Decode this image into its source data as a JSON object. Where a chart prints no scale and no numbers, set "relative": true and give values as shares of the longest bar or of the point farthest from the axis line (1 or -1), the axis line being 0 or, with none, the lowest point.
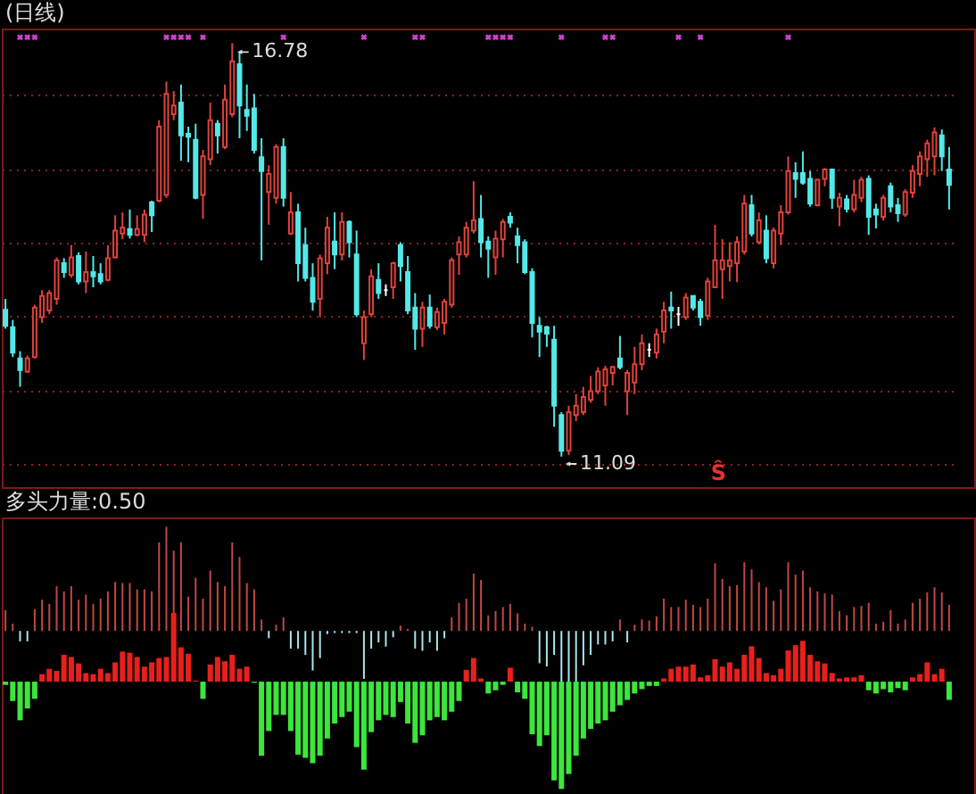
{
  "chart_data": [
    {
      "type": "candlestick",
      "title": "(日线)",
      "categories": [
        null,
        null,
        null,
        null,
        null,
        null,
        null,
        null,
        null,
        null,
        null,
        null,
        null,
        null,
        null,
        null,
        null,
        null,
        null,
        null,
        null,
        null,
        null,
        null,
        null,
        null,
        null,
        null,
        null,
        null,
        null,
        null,
        null,
        null,
        null,
        null,
        null,
        null,
        null,
        null,
        null,
        null,
        null,
        null,
        null,
        null,
        null,
        null,
        null,
        null,
        null,
        null,
        null,
        null,
        null,
        null,
        null,
        null,
        null,
        null,
        null,
        null,
        null,
        null,
        null,
        null,
        null,
        null,
        null,
        null,
        null,
        null,
        null,
        null,
        null,
        null,
        null,
        null,
        null,
        null,
        null,
        null,
        null,
        null,
        null,
        null,
        null,
        null,
        null,
        null,
        null,
        null,
        null,
        null,
        null,
        null,
        null,
        null,
        null,
        null,
        null,
        null,
        null,
        null,
        null,
        null,
        null,
        null,
        null,
        null,
        null,
        null,
        null,
        null,
        null,
        null,
        null,
        null,
        null,
        null,
        null,
        null,
        null,
        null,
        null,
        null,
        null,
        null,
        null,
        null
      ],
      "ohlc": [
        [
          13.11,
          13.26,
          12.85,
          12.89
        ],
        [
          12.87,
          12.97,
          12.46,
          12.52
        ],
        [
          12.44,
          12.54,
          12.05,
          12.28
        ],
        [
          12.26,
          12.48,
          12.24,
          12.44
        ],
        [
          12.46,
          13.18,
          12.44,
          13.14
        ],
        [
          13.01,
          13.38,
          12.93,
          13.3
        ],
        [
          13.1,
          13.38,
          13.05,
          13.34
        ],
        [
          13.26,
          13.83,
          13.18,
          13.79
        ],
        [
          13.75,
          13.82,
          13.55,
          13.63
        ],
        [
          13.59,
          14.0,
          13.55,
          13.83
        ],
        [
          13.85,
          13.9,
          13.46,
          13.5
        ],
        [
          13.5,
          13.91,
          13.34,
          13.63
        ],
        [
          13.63,
          13.85,
          13.42,
          13.57
        ],
        [
          13.6,
          13.75,
          13.46,
          13.5
        ],
        [
          13.52,
          14.0,
          13.5,
          13.82
        ],
        [
          13.83,
          14.41,
          13.82,
          14.2
        ],
        [
          14.16,
          14.45,
          14.08,
          14.24
        ],
        [
          14.22,
          14.49,
          14.09,
          14.14
        ],
        [
          14.14,
          14.41,
          14.12,
          14.22
        ],
        [
          14.14,
          14.49,
          14.04,
          14.42
        ],
        [
          14.59,
          14.61,
          14.18,
          14.41
        ],
        [
          14.61,
          15.72,
          14.59,
          15.63
        ],
        [
          14.69,
          16.25,
          14.65,
          16.08
        ],
        [
          15.8,
          16.12,
          15.72,
          15.92
        ],
        [
          15.96,
          16.21,
          15.16,
          15.51
        ],
        [
          15.53,
          15.63,
          15.14,
          15.49
        ],
        [
          15.45,
          15.67,
          14.63,
          14.65
        ],
        [
          14.69,
          15.31,
          14.36,
          15.22
        ],
        [
          15.18,
          15.96,
          15.1,
          15.72
        ],
        [
          15.67,
          15.72,
          15.26,
          15.51
        ],
        [
          15.35,
          16.21,
          15.32,
          16.0
        ],
        [
          15.8,
          16.78,
          15.76,
          16.53
        ],
        [
          16.49,
          16.66,
          15.47,
          15.92
        ],
        [
          15.86,
          16.21,
          15.57,
          15.78
        ],
        [
          15.88,
          16.08,
          15.26,
          15.31
        ],
        [
          15.21,
          15.47,
          13.79,
          15.02
        ],
        [
          14.73,
          15.1,
          14.28,
          14.98
        ],
        [
          14.65,
          15.39,
          14.57,
          15.35
        ],
        [
          15.35,
          15.47,
          14.53,
          14.65
        ],
        [
          14.16,
          14.73,
          14.14,
          14.45
        ],
        [
          14.45,
          14.57,
          13.5,
          13.75
        ],
        [
          14.0,
          14.24,
          13.5,
          13.55
        ],
        [
          13.55,
          13.75,
          13.1,
          13.22
        ],
        [
          13.26,
          13.87,
          13.01,
          13.82
        ],
        [
          13.75,
          14.39,
          13.6,
          14.24
        ],
        [
          14.05,
          14.45,
          13.67,
          13.87
        ],
        [
          13.87,
          14.45,
          13.79,
          14.32
        ],
        [
          14.32,
          14.34,
          13.83,
          14.04
        ],
        [
          13.87,
          14.2,
          13.01,
          13.05
        ],
        [
          12.65,
          13.1,
          12.42,
          13.01
        ],
        [
          13.05,
          13.67,
          13.01,
          13.57
        ],
        [
          13.52,
          13.75,
          13.26,
          13.34
        ],
        [
          13.38,
          13.46,
          13.3,
          13.38
        ],
        [
          13.42,
          13.77,
          13.26,
          13.75
        ],
        [
          14.0,
          14.04,
          13.5,
          13.71
        ],
        [
          13.63,
          13.85,
          13.05,
          13.1
        ],
        [
          13.14,
          13.34,
          12.56,
          12.85
        ],
        [
          12.85,
          13.22,
          12.6,
          13.14
        ],
        [
          13.14,
          13.32,
          12.85,
          12.89
        ],
        [
          12.87,
          13.14,
          12.83,
          13.08
        ],
        [
          12.93,
          13.26,
          12.77,
          13.22
        ],
        [
          13.18,
          13.83,
          13.14,
          13.79
        ],
        [
          13.87,
          14.12,
          13.59,
          14.04
        ],
        [
          13.87,
          14.32,
          13.83,
          14.24
        ],
        [
          14.2,
          14.88,
          14.16,
          14.34
        ],
        [
          14.36,
          14.69,
          13.83,
          14.04
        ],
        [
          14.05,
          14.12,
          13.55,
          13.95
        ],
        [
          13.83,
          14.2,
          13.59,
          14.09
        ],
        [
          14.08,
          14.36,
          13.83,
          14.32
        ],
        [
          14.39,
          14.45,
          14.24,
          14.31
        ],
        [
          14.12,
          14.24,
          13.75,
          14.0
        ],
        [
          14.04,
          14.08,
          13.6,
          13.63
        ],
        [
          13.63,
          13.68,
          12.73,
          12.93
        ],
        [
          12.89,
          13.01,
          12.46,
          12.81
        ],
        [
          12.87,
          12.89,
          12.6,
          12.78
        ],
        [
          12.7,
          12.89,
          11.5,
          11.79
        ],
        [
          11.66,
          11.7,
          11.09,
          11.17
        ],
        [
          11.17,
          11.79,
          11.11,
          11.7
        ],
        [
          11.66,
          11.95,
          11.58,
          11.79
        ],
        [
          11.7,
          12.05,
          11.66,
          11.91
        ],
        [
          11.87,
          12.2,
          11.83,
          11.99
        ],
        [
          11.99,
          12.32,
          11.95,
          12.26
        ],
        [
          12.07,
          12.34,
          11.79,
          12.29
        ],
        [
          12.24,
          12.34,
          12.07,
          12.32
        ],
        [
          12.44,
          12.75,
          12.29,
          12.32
        ],
        [
          11.99,
          12.28,
          11.66,
          12.24
        ],
        [
          12.11,
          12.6,
          11.95,
          12.36
        ],
        [
          12.36,
          12.77,
          12.28,
          12.65
        ],
        [
          12.56,
          12.65,
          12.46,
          12.56
        ],
        [
          12.52,
          12.85,
          12.44,
          12.77
        ],
        [
          12.81,
          13.22,
          12.65,
          13.1
        ],
        [
          13.14,
          13.36,
          12.85,
          13.1
        ],
        [
          13.05,
          13.15,
          12.89,
          13.05
        ],
        [
          13.01,
          13.34,
          12.97,
          13.28
        ],
        [
          13.3,
          13.3,
          13.1,
          13.14
        ],
        [
          13.22,
          13.26,
          12.89,
          13.01
        ],
        [
          13.03,
          13.55,
          12.97,
          13.5
        ],
        [
          13.42,
          14.28,
          13.41,
          13.79
        ],
        [
          13.67,
          14.08,
          13.26,
          13.79
        ],
        [
          13.71,
          14.04,
          13.5,
          13.79
        ],
        [
          13.75,
          14.12,
          13.49,
          14.04
        ],
        [
          13.91,
          14.69,
          13.87,
          14.57
        ],
        [
          14.55,
          14.69,
          14.12,
          14.16
        ],
        [
          14.04,
          14.45,
          14.01,
          14.34
        ],
        [
          14.2,
          14.41,
          13.75,
          13.82
        ],
        [
          13.75,
          14.24,
          13.68,
          14.2
        ],
        [
          14.16,
          14.55,
          14.0,
          14.45
        ],
        [
          14.45,
          15.22,
          14.42,
          15.02
        ],
        [
          14.99,
          15.14,
          14.65,
          14.91
        ],
        [
          14.99,
          15.29,
          14.83,
          14.86
        ],
        [
          14.91,
          15.02,
          14.53,
          14.57
        ],
        [
          14.55,
          14.91,
          14.53,
          14.9
        ],
        [
          14.91,
          15.06,
          14.81,
          15.04
        ],
        [
          15.04,
          15.04,
          14.5,
          14.65
        ],
        [
          14.53,
          14.72,
          14.26,
          14.65
        ],
        [
          14.63,
          14.69,
          14.45,
          14.5
        ],
        [
          14.49,
          14.9,
          14.45,
          14.69
        ],
        [
          14.65,
          14.94,
          14.59,
          14.9
        ],
        [
          14.91,
          14.96,
          14.14,
          14.39
        ],
        [
          14.49,
          14.57,
          14.23,
          14.42
        ],
        [
          14.39,
          14.69,
          14.34,
          14.65
        ],
        [
          14.81,
          14.86,
          14.45,
          14.53
        ],
        [
          14.55,
          14.65,
          14.32,
          14.44
        ],
        [
          14.42,
          14.77,
          14.39,
          14.73
        ],
        [
          14.72,
          15.1,
          14.65,
          15.02
        ],
        [
          14.98,
          15.29,
          14.81,
          15.22
        ],
        [
          15.18,
          15.45,
          14.94,
          15.4
        ],
        [
          15.22,
          15.62,
          14.96,
          15.55
        ],
        [
          15.51,
          15.59,
          15.02,
          15.22
        ],
        [
          15.04,
          15.35,
          14.49,
          14.83
        ]
      ],
      "colors": [
        "#54e8e8",
        "#54e8e8",
        "#54e8e8",
        "#e0423c",
        "#e0423c",
        "#e0423c",
        "#e0423c",
        "#e0423c",
        "#54e8e8",
        "#e0423c",
        "#54e8e8",
        "#e0423c",
        "#54e8e8",
        "#54e8e8",
        "#e0423c",
        "#e0423c",
        "#e0423c",
        "#54e8e8",
        "#e0423c",
        "#e0423c",
        "#54e8e8",
        "#e0423c",
        "#e0423c",
        "#e0423c",
        "#54e8e8",
        "#54e8e8",
        "#54e8e8",
        "#e0423c",
        "#e0423c",
        "#54e8e8",
        "#e0423c",
        "#e0423c",
        "#54e8e8",
        "#54e8e8",
        "#54e8e8",
        "#54e8e8",
        "#e0423c",
        "#e0423c",
        "#54e8e8",
        "#e0423c",
        "#54e8e8",
        "#54e8e8",
        "#54e8e8",
        "#e0423c",
        "#e0423c",
        "#54e8e8",
        "#e0423c",
        "#54e8e8",
        "#54e8e8",
        "#e0423c",
        "#e0423c",
        "#54e8e8",
        "#ffffff",
        "#e0423c",
        "#54e8e8",
        "#54e8e8",
        "#54e8e8",
        "#e0423c",
        "#54e8e8",
        "#e0423c",
        "#e0423c",
        "#e0423c",
        "#e0423c",
        "#e0423c",
        "#e0423c",
        "#54e8e8",
        "#54e8e8",
        "#e0423c",
        "#e0423c",
        "#54e8e8",
        "#54e8e8",
        "#54e8e8",
        "#54e8e8",
        "#54e8e8",
        "#54e8e8",
        "#54e8e8",
        "#54e8e8",
        "#e0423c",
        "#e0423c",
        "#e0423c",
        "#e0423c",
        "#e0423c",
        "#e0423c",
        "#e0423c",
        "#54e8e8",
        "#e0423c",
        "#e0423c",
        "#e0423c",
        "#ffffff",
        "#e0423c",
        "#e0423c",
        "#54e8e8",
        "#ffffff",
        "#e0423c",
        "#54e8e8",
        "#54e8e8",
        "#e0423c",
        "#e0423c",
        "#e0423c",
        "#e0423c",
        "#e0423c",
        "#e0423c",
        "#54e8e8",
        "#e0423c",
        "#54e8e8",
        "#e0423c",
        "#e0423c",
        "#e0423c",
        "#54e8e8",
        "#54e8e8",
        "#54e8e8",
        "#e0423c",
        "#e0423c",
        "#54e8e8",
        "#e0423c",
        "#54e8e8",
        "#e0423c",
        "#e0423c",
        "#54e8e8",
        "#54e8e8",
        "#e0423c",
        "#54e8e8",
        "#54e8e8",
        "#e0423c",
        "#e0423c",
        "#e0423c",
        "#e0423c",
        "#e0423c",
        "#54e8e8",
        "#54e8e8"
      ],
      "series": [
        {
          "type": "scatter",
          "marker": "cross",
          "color": "#d040d0",
          "values": [
            null,
            null,
            16.86,
            16.86,
            16.86,
            null,
            null,
            null,
            null,
            null,
            null,
            null,
            null,
            null,
            null,
            null,
            null,
            null,
            null,
            null,
            null,
            null,
            16.86,
            16.86,
            16.86,
            16.86,
            null,
            16.86,
            null,
            null,
            null,
            null,
            null,
            null,
            null,
            null,
            null,
            null,
            16.86,
            null,
            null,
            null,
            null,
            null,
            null,
            null,
            null,
            null,
            null,
            16.86,
            null,
            null,
            null,
            null,
            null,
            null,
            16.86,
            16.86,
            null,
            null,
            null,
            null,
            null,
            null,
            null,
            null,
            16.86,
            16.86,
            16.86,
            16.86,
            null,
            null,
            null,
            null,
            null,
            null,
            16.86,
            null,
            null,
            null,
            null,
            null,
            16.86,
            16.86,
            null,
            null,
            null,
            null,
            null,
            null,
            null,
            null,
            16.86,
            null,
            null,
            16.86,
            null,
            null,
            null,
            null,
            null,
            null,
            null,
            null,
            null,
            null,
            null,
            16.86,
            null,
            null,
            null,
            null,
            null,
            null,
            null,
            null,
            null,
            null,
            null,
            null,
            null,
            null,
            null,
            null,
            null,
            null,
            null,
            null,
            null,
            null
          ]
        }
      ],
      "ylim": [
        10.67,
        16.98
      ],
      "yticks": [
        {
          "value": 16.08,
          "label": null
        },
        {
          "value": 15.04,
          "label": null
        },
        {
          "value": 14.04,
          "label": null
        },
        {
          "value": 13.03,
          "label": null
        },
        {
          "value": 11.99,
          "label": null
        },
        {
          "value": 10.98,
          "label": null
        }
      ],
      "grid": "y",
      "annotations": [
        {
          "text": "16.78",
          "y": 16.78
        },
        "11.09",
        "Ŝ"
      ]
    },
    {
      "type": "bar",
      "relative": true,
      "title": "多头力量:0.50",
      "categories": [
        null,
        null,
        null,
        null,
        null,
        null,
        null,
        null,
        null,
        null,
        null,
        null,
        null,
        null,
        null,
        null,
        null,
        null,
        null,
        null,
        null,
        null,
        null,
        null,
        null,
        null,
        null,
        null,
        null,
        null,
        null,
        null,
        null,
        null,
        null,
        null,
        null,
        null,
        null,
        null,
        null,
        null,
        null,
        null,
        null,
        null,
        null,
        null,
        null,
        null,
        null,
        null,
        null,
        null,
        null,
        null,
        null,
        null,
        null,
        null,
        null,
        null,
        null,
        null,
        null,
        null,
        null,
        null,
        null,
        null,
        null,
        null,
        null,
        null,
        null,
        null,
        null,
        null,
        null,
        null,
        null,
        null,
        null,
        null,
        null,
        null,
        null,
        null,
        null,
        null,
        null,
        null,
        null,
        null,
        null,
        null,
        null,
        null,
        null,
        null,
        null,
        null,
        null,
        null,
        null,
        null,
        null,
        null,
        null,
        null,
        null,
        null,
        null,
        null,
        null,
        null,
        null,
        null,
        null,
        null,
        null,
        null,
        null,
        null,
        null,
        null,
        null,
        null,
        null,
        null
      ],
      "series": [
        {
          "color": "#c04844",
          "values": [
            0.2,
            0.07,
            null,
            null,
            0.21,
            0.3,
            0.26,
            0.43,
            0.38,
            0.43,
            0.3,
            0.35,
            0.26,
            0.31,
            0.38,
            0.47,
            0.46,
            0.46,
            0.4,
            0.4,
            0.38,
            0.85,
            1.0,
            0.77,
            0.85,
            0.33,
            0.51,
            0.31,
            0.58,
            0.47,
            0.43,
            0.85,
            0.71,
            0.46,
            0.4,
            0.11,
            null,
            0.06,
            0.13,
            null,
            null,
            null,
            null,
            null,
            null,
            null,
            null,
            null,
            null,
            null,
            null,
            null,
            null,
            null,
            0.05,
            0.02,
            null,
            null,
            null,
            null,
            null,
            0.13,
            0.27,
            0.31,
            0.55,
            0.49,
            0.15,
            0.19,
            0.23,
            0.26,
            0.17,
            0.07,
            0.04,
            null,
            null,
            null,
            null,
            null,
            null,
            null,
            null,
            null,
            null,
            null,
            0.11,
            null,
            0.06,
            0.11,
            0.1,
            0.14,
            0.31,
            0.23,
            0.23,
            0.3,
            0.25,
            0.23,
            0.31,
            0.65,
            0.5,
            0.43,
            0.44,
            0.66,
            0.59,
            0.47,
            0.42,
            0.29,
            0.4,
            0.66,
            0.54,
            0.58,
            0.42,
            0.38,
            0.36,
            0.35,
            0.19,
            0.15,
            0.23,
            0.24,
            0.27,
            0.07,
            0.09,
            0.2,
            0.07,
            0.11,
            0.27,
            0.31,
            0.37,
            0.42,
            0.37,
            0.25
          ]
        },
        {
          "color": "#a8e6ee",
          "values": [
            null,
            null,
            -0.1,
            -0.1,
            null,
            null,
            null,
            null,
            null,
            null,
            null,
            null,
            null,
            null,
            null,
            null,
            null,
            null,
            null,
            null,
            null,
            null,
            null,
            null,
            null,
            null,
            null,
            null,
            null,
            null,
            null,
            null,
            null,
            null,
            null,
            null,
            -0.07,
            null,
            null,
            -0.17,
            -0.17,
            -0.23,
            -0.38,
            -0.26,
            -0.03,
            -0.02,
            -0.02,
            -0.02,
            -0.02,
            -0.46,
            -0.17,
            -0.11,
            -0.15,
            -0.06,
            null,
            null,
            -0.17,
            -0.19,
            -0.11,
            -0.19,
            -0.07,
            null,
            null,
            null,
            null,
            null,
            null,
            null,
            null,
            null,
            null,
            null,
            null,
            -0.31,
            -0.34,
            -0.23,
            -0.49,
            -0.49,
            -0.49,
            -0.33,
            -0.23,
            -0.13,
            -0.13,
            -0.1,
            null,
            -0.11,
            null,
            null,
            null,
            null,
            null,
            null,
            null,
            null,
            null,
            null,
            null,
            null,
            null,
            null,
            null,
            null,
            null,
            null,
            null,
            null,
            null,
            null,
            null,
            null,
            null,
            null,
            null,
            null,
            null,
            null,
            null,
            null,
            null,
            null,
            null,
            null,
            null,
            null,
            null,
            null,
            null,
            null,
            null,
            null
          ]
        },
        {
          "color": "#e8201c",
          "axis": "y2",
          "values": [
            null,
            null,
            null,
            null,
            null,
            0.07,
            0.12,
            0.1,
            0.25,
            0.23,
            0.17,
            0.08,
            0.07,
            0.12,
            0.08,
            0.18,
            0.28,
            0.27,
            0.23,
            0.14,
            0.18,
            0.22,
            0.23,
            0.64,
            0.32,
            0.26,
            0.01,
            null,
            0.16,
            0.23,
            0.19,
            0.25,
            0.12,
            0.14,
            null,
            null,
            null,
            null,
            null,
            null,
            null,
            null,
            null,
            null,
            null,
            null,
            null,
            null,
            null,
            null,
            null,
            null,
            null,
            null,
            null,
            null,
            null,
            null,
            null,
            null,
            null,
            null,
            null,
            0.11,
            0.22,
            0.03,
            null,
            null,
            null,
            0.13,
            null,
            null,
            null,
            null,
            null,
            null,
            null,
            null,
            null,
            null,
            null,
            null,
            null,
            null,
            null,
            null,
            null,
            null,
            null,
            null,
            0.03,
            0.12,
            0.14,
            0.14,
            0.16,
            0.04,
            0.06,
            0.21,
            0.14,
            0.18,
            0.12,
            0.25,
            0.33,
            0.22,
            0.08,
            0.06,
            0.12,
            0.29,
            0.34,
            0.38,
            0.25,
            0.19,
            0.17,
            0.08,
            0.03,
            0.04,
            0.04,
            0.06,
            null,
            null,
            null,
            null,
            null,
            null,
            0.04,
            0.07,
            0.18,
            0.07,
            0.12,
            null
          ]
        },
        {
          "color": "#3ce63c",
          "axis": "y2",
          "values": [
            -0.03,
            -0.18,
            -0.36,
            -0.25,
            -0.16,
            null,
            null,
            null,
            null,
            null,
            null,
            null,
            null,
            null,
            null,
            null,
            null,
            null,
            null,
            null,
            null,
            null,
            null,
            null,
            null,
            null,
            null,
            -0.16,
            null,
            null,
            null,
            null,
            null,
            null,
            -0.01,
            -0.69,
            -0.46,
            -0.31,
            -0.31,
            -0.46,
            -0.68,
            -0.71,
            -0.76,
            -0.69,
            -0.53,
            -0.39,
            -0.33,
            -0.28,
            -0.61,
            -0.82,
            -0.47,
            -0.36,
            -0.31,
            -0.33,
            -0.19,
            -0.39,
            -0.57,
            -0.5,
            -0.36,
            -0.33,
            -0.36,
            -0.28,
            -0.18,
            null,
            null,
            null,
            -0.11,
            -0.08,
            -0.03,
            null,
            -0.1,
            -0.16,
            -0.49,
            -0.6,
            -0.5,
            -0.92,
            -1.0,
            -0.86,
            -0.69,
            -0.53,
            -0.44,
            -0.39,
            -0.36,
            -0.28,
            -0.22,
            -0.17,
            -0.11,
            -0.07,
            -0.04,
            -0.04,
            null,
            null,
            null,
            null,
            null,
            null,
            null,
            null,
            null,
            null,
            null,
            null,
            null,
            null,
            null,
            null,
            null,
            null,
            null,
            null,
            null,
            null,
            null,
            null,
            null,
            null,
            null,
            null,
            -0.08,
            -0.11,
            -0.07,
            -0.1,
            -0.06,
            -0.08,
            null,
            null,
            null,
            null,
            null,
            -0.17
          ]
        }
      ]
    }
  ]
}
